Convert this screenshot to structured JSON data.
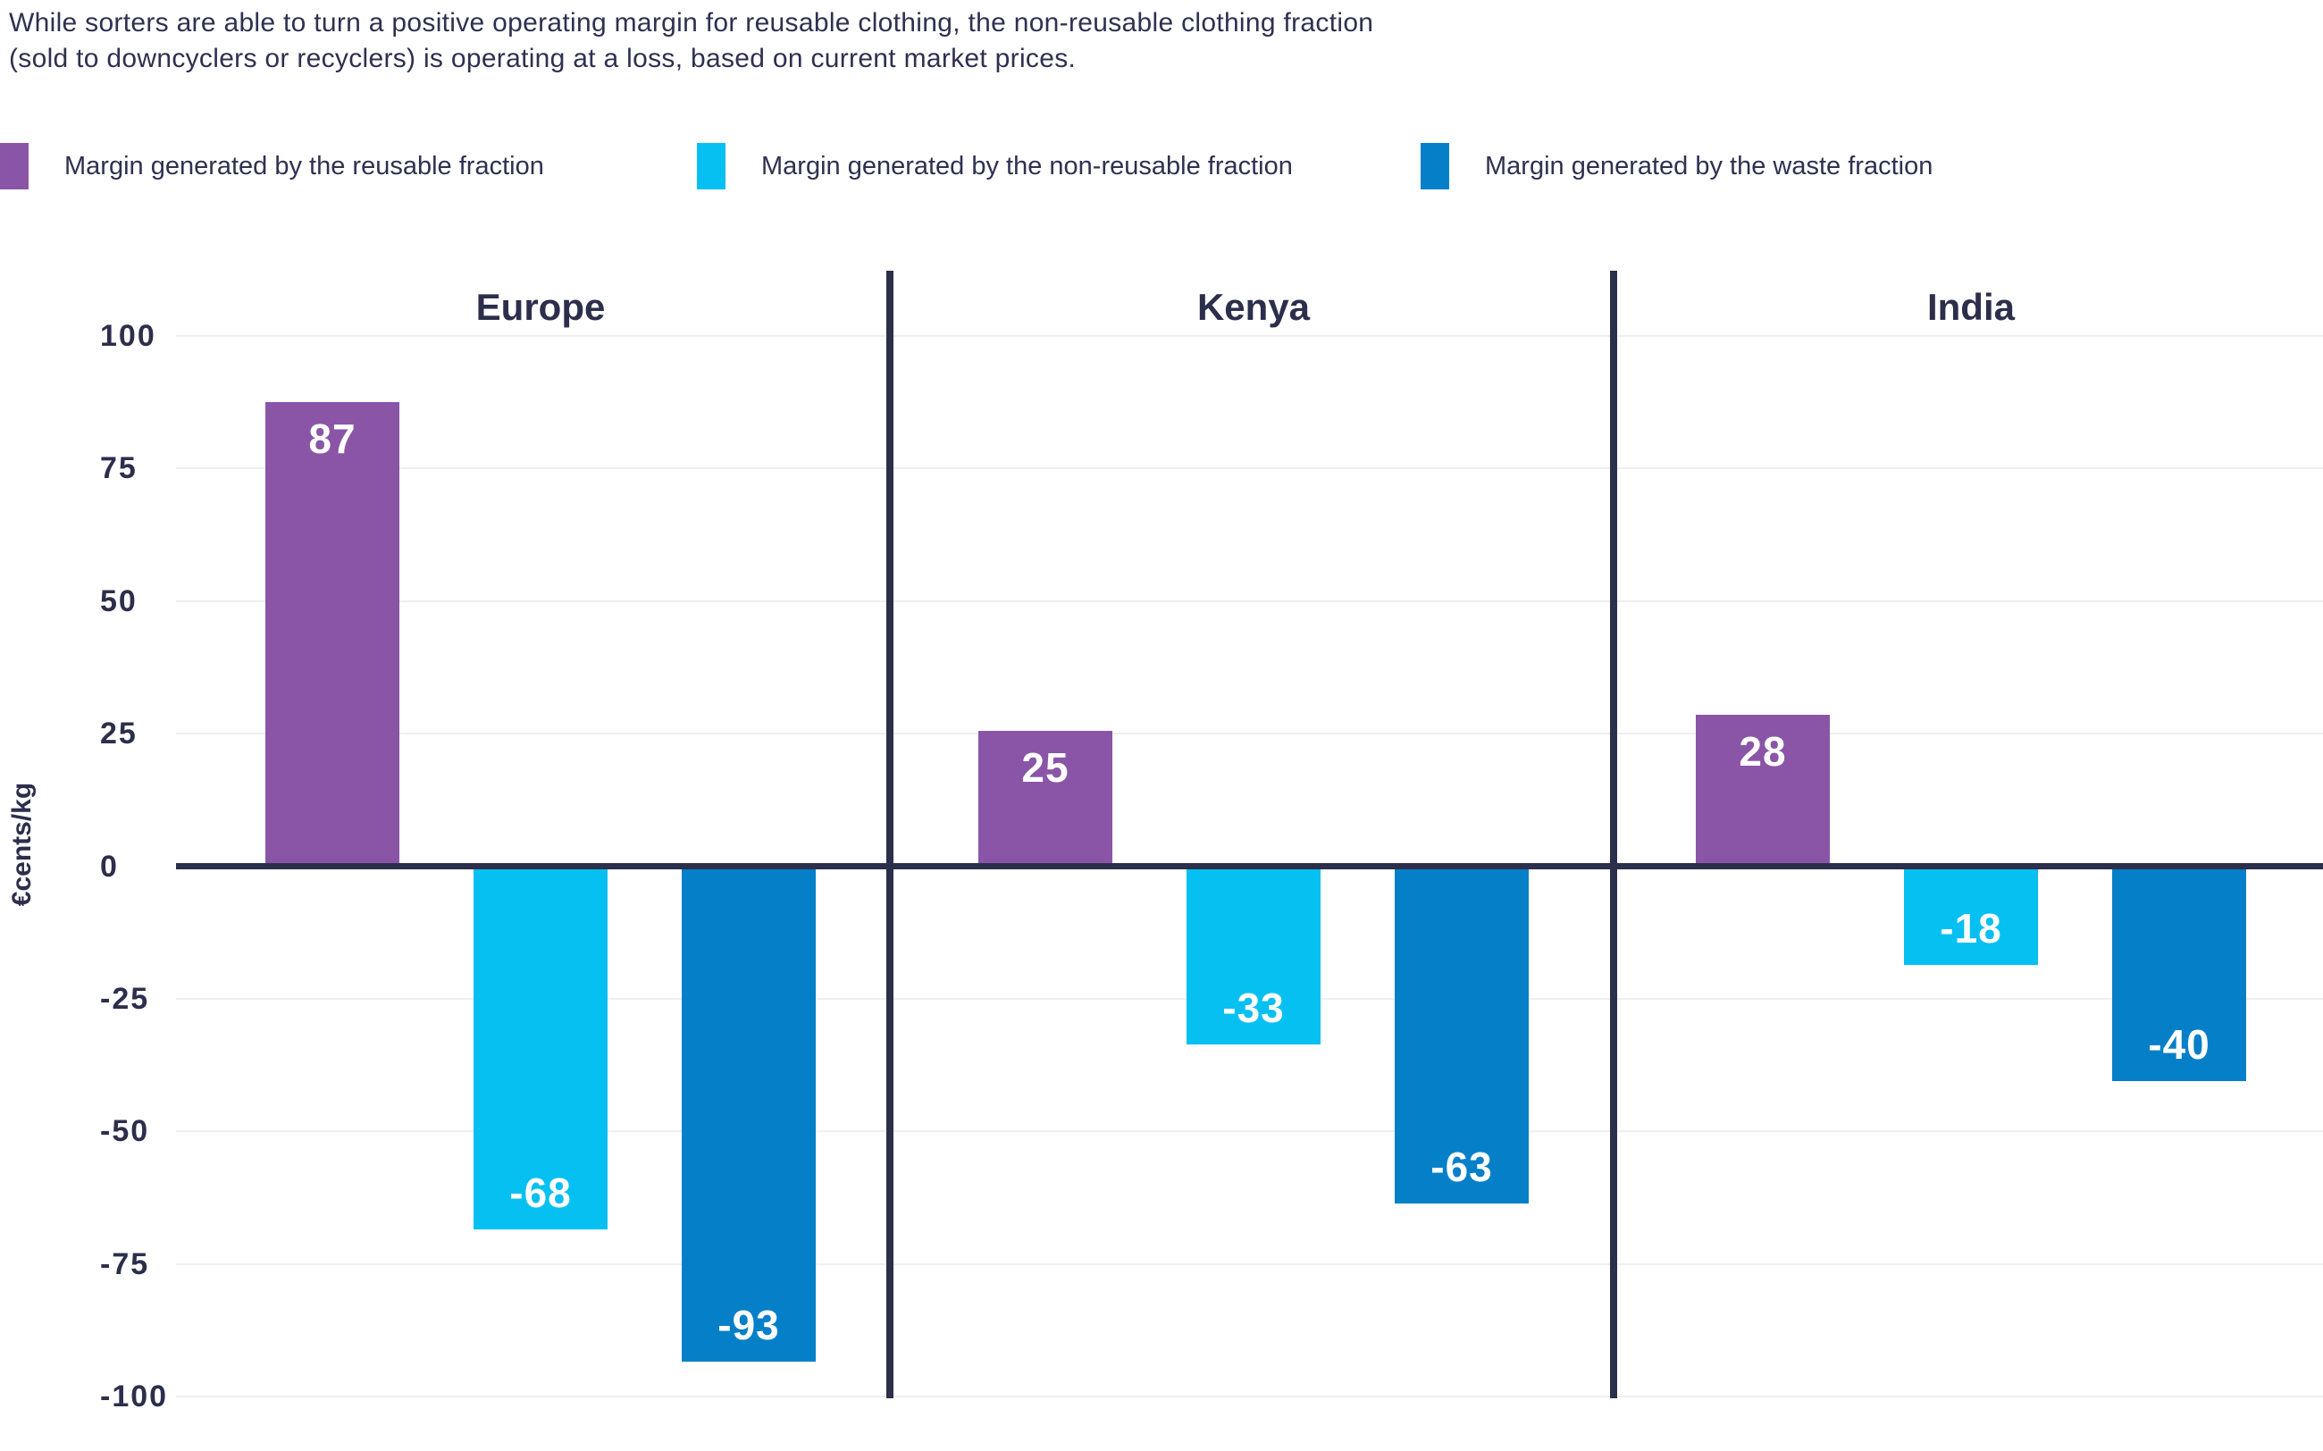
{
  "title": {
    "line1": "While sorters are able to turn a positive operating margin for reusable clothing, the non-reusable clothing fraction",
    "line2": "(sold to downcyclers or recyclers) is operating at a loss, based on current market prices."
  },
  "legend": {
    "items": [
      {
        "label": "Margin generated by the reusable fraction",
        "color": "#8a55a7"
      },
      {
        "label": "Margin generated by the non-reusable fraction",
        "color": "#06c0f2"
      },
      {
        "label": "Margin generated by the waste fraction",
        "color": "#0580c8"
      }
    ]
  },
  "colors": {
    "text": "#2c2f4b",
    "axis_line": "#2c2f4b",
    "gridline": "#efefef",
    "bar_label": "#ffffff",
    "purple": "#8a55a7",
    "cyan": "#06c0f2",
    "blue": "#0580c8"
  },
  "y_axis": {
    "label": "€cents/kg",
    "ticks": [
      100,
      75,
      50,
      25,
      0,
      -25,
      -50,
      -75,
      -100
    ]
  },
  "chart_data": {
    "type": "bar",
    "title": "While sorters are able to turn a positive operating margin for reusable clothing, the non-reusable clothing fraction (sold to downcyclers or recyclers) is operating at a loss, based on current market prices.",
    "categories": [
      "Europe",
      "Kenya",
      "India"
    ],
    "series": [
      {
        "name": "Margin generated by the reusable fraction",
        "color": "#8a55a7",
        "values": [
          87,
          25,
          28
        ]
      },
      {
        "name": "Margin generated by the non-reusable fraction",
        "color": "#06c0f2",
        "values": [
          -68,
          -33,
          -18
        ]
      },
      {
        "name": "Margin generated by the waste fraction",
        "color": "#0580c8",
        "values": [
          -93,
          -63,
          -40
        ]
      }
    ],
    "xlabel": "",
    "ylabel": "€cents/kg",
    "ylim": [
      -100,
      100
    ],
    "yticks": [
      100,
      75,
      50,
      25,
      0,
      -25,
      -50,
      -75,
      -100
    ],
    "grid": true,
    "legend_position": "top",
    "panel_layout": "three panels separated by vertical lines, bar value labels printed inside bars"
  }
}
